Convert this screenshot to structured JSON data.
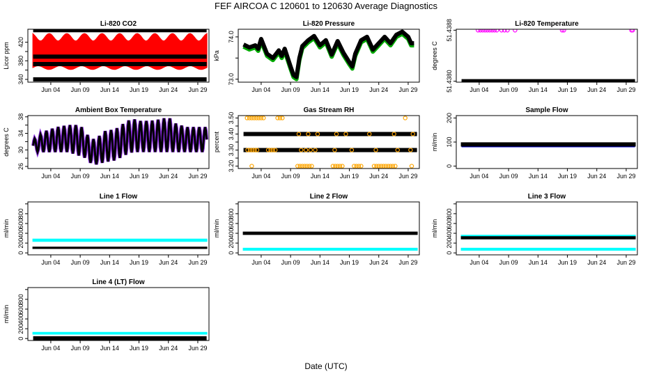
{
  "figure": {
    "title": "FEF   AIRCOA C   120601 to 120630   Average Diagnostics",
    "xlabel": "Date (UTC)"
  },
  "chart_data": [
    {
      "id": "co2",
      "type": "scatter",
      "title": "Li-820 CO2",
      "ylabel": "Licor ppm",
      "ylim": [
        334,
        448
      ],
      "yticks": [
        340,
        360,
        380,
        400,
        420
      ],
      "yticklabels": [
        "340",
        "",
        "380",
        "",
        "420"
      ],
      "series": [
        {
          "name": "co2-samples",
          "color": "#ff0000",
          "kind": "band",
          "min": 366,
          "max": 430,
          "wave": 8
        },
        {
          "name": "ref-upper",
          "color": "#000000",
          "kind": "flat",
          "value": 446
        },
        {
          "name": "ref-a",
          "color": "#000000",
          "kind": "flat",
          "value": 389
        },
        {
          "name": "ref-b",
          "color": "#000000",
          "kind": "flat",
          "value": 373
        },
        {
          "name": "ref-lower",
          "color": "#000000",
          "kind": "flat",
          "value": 340
        }
      ]
    },
    {
      "id": "pressure",
      "type": "line",
      "title": "Li-820 Pressure",
      "ylabel": "kPa",
      "ylim": [
        72.93,
        74.18
      ],
      "yticks": [
        73.0,
        73.5,
        74.0
      ],
      "yticklabels": [
        "73.0",
        "",
        "74.0"
      ],
      "series": [
        {
          "name": "pressure",
          "color": "#000000",
          "kind": "line",
          "shadow": "#00aa00",
          "x": [
            1,
            2,
            3,
            3.5,
            4,
            5,
            6,
            7,
            7.5,
            8,
            9,
            9.5,
            10,
            10.5,
            11,
            12,
            13,
            14,
            15,
            16,
            17,
            18,
            19,
            19.5,
            20,
            21,
            22,
            23,
            24,
            25,
            26,
            27,
            28,
            29,
            29.5,
            30
          ],
          "values": [
            73.82,
            73.75,
            73.8,
            73.72,
            73.95,
            73.6,
            73.5,
            73.68,
            73.55,
            73.72,
            73.3,
            73.1,
            73.05,
            73.5,
            73.78,
            73.92,
            74.02,
            73.8,
            73.92,
            73.58,
            73.9,
            73.62,
            73.4,
            73.3,
            73.6,
            73.92,
            74.0,
            73.7,
            73.85,
            74.0,
            73.85,
            74.05,
            74.12,
            74.0,
            73.85,
            73.85
          ]
        }
      ]
    },
    {
      "id": "temperature",
      "type": "scatter",
      "title": "Li-820 Temperature",
      "ylabel": "degrees C",
      "ylim": [
        51.437985,
        51.438815
      ],
      "yticks": [
        51.438,
        51.4388
      ],
      "yticklabels": [
        "51.4380",
        "51.4388"
      ],
      "series": [
        {
          "name": "temperature",
          "color": "#000000",
          "kind": "flat",
          "value": 51.438
        },
        {
          "name": "temp-high",
          "color": "#ff00ff",
          "kind": "points",
          "value": 51.4388,
          "x": [
            3.8,
            4.2,
            4.6,
            5.0,
            5.4,
            5.8,
            6.2,
            6.6,
            7.0,
            7.8,
            8.3,
            8.8,
            10.1,
            18.1,
            18.4,
            29.9,
            30.1
          ]
        }
      ]
    },
    {
      "id": "box-temp",
      "type": "line",
      "title": "Ambient Box Temperature",
      "ylabel": "degrees C",
      "ylim": [
        25.5,
        38.3
      ],
      "yticks": [
        26,
        28,
        30,
        32,
        34,
        36,
        38
      ],
      "yticklabels": [
        "26",
        "",
        "30",
        "",
        "34",
        "",
        "38"
      ],
      "series": [
        {
          "name": "box-temp",
          "color": "#000000",
          "kind": "diurnal",
          "shadow": "#8a2be2",
          "x": [
            1,
            3,
            5,
            7,
            9,
            10,
            11,
            12,
            13,
            15,
            17,
            18,
            19,
            21,
            23,
            24,
            25,
            27,
            29,
            30
          ],
          "lower": [
            29.5,
            29.5,
            29.5,
            29.5,
            28.5,
            28,
            26.5,
            26.5,
            27,
            27.5,
            29,
            29.5,
            29.5,
            29.5,
            29.5,
            29.5,
            29.5,
            29.5,
            29.5,
            29.5
          ],
          "upper": [
            32.5,
            34.5,
            35.5,
            36,
            36,
            34,
            32.5,
            33,
            34.5,
            35,
            37,
            37.5,
            37,
            37,
            37.5,
            38,
            36.5,
            35.5,
            35.5,
            35.5
          ]
        }
      ]
    },
    {
      "id": "rh",
      "type": "scatter",
      "title": "Gas Stream RH",
      "ylabel": "percent",
      "ylim": [
        3.185,
        3.515
      ],
      "yticks": [
        3.2,
        3.25,
        3.3,
        3.35,
        3.4,
        3.45,
        3.5
      ],
      "yticklabels": [
        "3.20",
        "",
        "3.30",
        "",
        "3.40",
        "",
        "3.50"
      ],
      "series": [
        {
          "name": "rh-3.40",
          "color": "#000000",
          "kind": "flat",
          "value": 3.4
        },
        {
          "name": "rh-3.30",
          "color": "#000000",
          "kind": "flat",
          "value": 3.3
        },
        {
          "name": "rh-high",
          "color": "#ffa500",
          "kind": "points",
          "value": 3.5,
          "x": [
            1.6,
            2.0,
            2.4,
            2.8,
            3.2,
            3.6,
            4.0,
            4.4,
            6.8,
            7.2,
            7.6,
            28.5
          ]
        },
        {
          "name": "rh-mid",
          "color": "#ffa500",
          "kind": "points",
          "value": 3.3,
          "x": [
            1.7,
            2.1,
            2.5,
            2.9,
            3.3,
            5.2,
            5.6,
            6.0,
            6.4,
            10.8,
            11.6,
            12.4,
            13.2,
            16.5,
            19.4,
            23.5,
            27.2,
            29.4
          ]
        },
        {
          "name": "rh-low",
          "color": "#ffa500",
          "kind": "points",
          "value": 3.2,
          "x": [
            2.4,
            10.2,
            10.6,
            11.0,
            11.4,
            11.8,
            12.2,
            12.6,
            16.2,
            16.6,
            17.0,
            17.4,
            17.8,
            19.8,
            20.2,
            20.6,
            21.0,
            23.2,
            23.6,
            24.0,
            24.4,
            24.8,
            25.2,
            25.6,
            26.0,
            26.4,
            26.8,
            29.6
          ]
        },
        {
          "name": "rh-mid-upper",
          "color": "#ffa500",
          "kind": "points",
          "value": 3.4,
          "x": [
            10.4,
            12.0,
            13.6,
            16.8,
            18.4,
            22.4,
            26.6,
            29.8
          ]
        }
      ]
    },
    {
      "id": "sample-flow",
      "type": "line",
      "title": "Sample Flow",
      "ylabel": "ml/min",
      "ylim": [
        -10,
        210
      ],
      "yticks": [
        0,
        100,
        200
      ],
      "yticklabels": [
        "0",
        "100",
        "200"
      ],
      "series": [
        {
          "name": "sample-flow",
          "color": "#000000",
          "kind": "band",
          "min": 84,
          "max": 96,
          "wave": 0,
          "shadow": "#0000cd"
        }
      ]
    },
    {
      "id": "line1",
      "type": "scatter",
      "title": "Line 1 Flow",
      "ylabel": "ml/min",
      "ylim": [
        -40,
        1040
      ],
      "yticks": [
        0,
        200,
        400,
        600,
        800,
        1000
      ],
      "yticklabels": [
        "0",
        "200",
        "400",
        "600",
        "800",
        ""
      ],
      "series": [
        {
          "name": "line1-cyan",
          "color": "#00ffff",
          "kind": "band",
          "min": 240,
          "max": 275,
          "wave": 0
        },
        {
          "name": "line1-black",
          "color": "#000000",
          "kind": "band",
          "min": 95,
          "max": 112,
          "wave": 0
        }
      ]
    },
    {
      "id": "line2",
      "type": "scatter",
      "title": "Line 2 Flow",
      "ylabel": "ml/min",
      "ylim": [
        -40,
        1040
      ],
      "yticks": [
        0,
        200,
        400,
        600,
        800,
        1000
      ],
      "yticklabels": [
        "0",
        "200",
        "400",
        "600",
        "800",
        ""
      ],
      "series": [
        {
          "name": "line2-cyan",
          "color": "#00ffff",
          "kind": "band",
          "min": 60,
          "max": 90,
          "wave": 0
        },
        {
          "name": "line2-black",
          "color": "#000000",
          "kind": "band",
          "min": 380,
          "max": 420,
          "wave": 0
        }
      ]
    },
    {
      "id": "line3",
      "type": "scatter",
      "title": "Line 3 Flow",
      "ylabel": "ml/min",
      "ylim": [
        -40,
        1040
      ],
      "yticks": [
        0,
        200,
        400,
        600,
        800,
        1000
      ],
      "yticklabels": [
        "0",
        "200",
        "400",
        "600",
        "800",
        ""
      ],
      "series": [
        {
          "name": "line3-cyan",
          "color": "#00ffff",
          "kind": "band",
          "min": 60,
          "max": 90,
          "wave": 0
        },
        {
          "name": "line3-cyan-upper",
          "color": "#00ffff",
          "kind": "band",
          "min": 330,
          "max": 355,
          "wave": 0
        },
        {
          "name": "line3-black",
          "color": "#000000",
          "kind": "band",
          "min": 290,
          "max": 325,
          "wave": 0
        }
      ]
    },
    {
      "id": "line4",
      "type": "scatter",
      "title": "Line 4 (LT) Flow",
      "ylabel": "ml/min",
      "ylim": [
        -40,
        1040
      ],
      "yticks": [
        0,
        200,
        400,
        600,
        800,
        1000
      ],
      "yticklabels": [
        "0",
        "200",
        "400",
        "600",
        "800",
        ""
      ],
      "series": [
        {
          "name": "line4-cyan",
          "color": "#00ffff",
          "kind": "band",
          "min": 95,
          "max": 120,
          "wave": 0
        },
        {
          "name": "line4-black",
          "color": "#000000",
          "kind": "flat",
          "value": 5
        }
      ]
    }
  ],
  "xaxis": {
    "range_days": [
      0.1,
      30.9
    ],
    "ticks": [
      4,
      9,
      14,
      19,
      24,
      29
    ],
    "ticklabels": [
      "Jun 04",
      "Jun 09",
      "Jun 14",
      "Jun 19",
      "Jun 24",
      "Jun 29"
    ]
  }
}
